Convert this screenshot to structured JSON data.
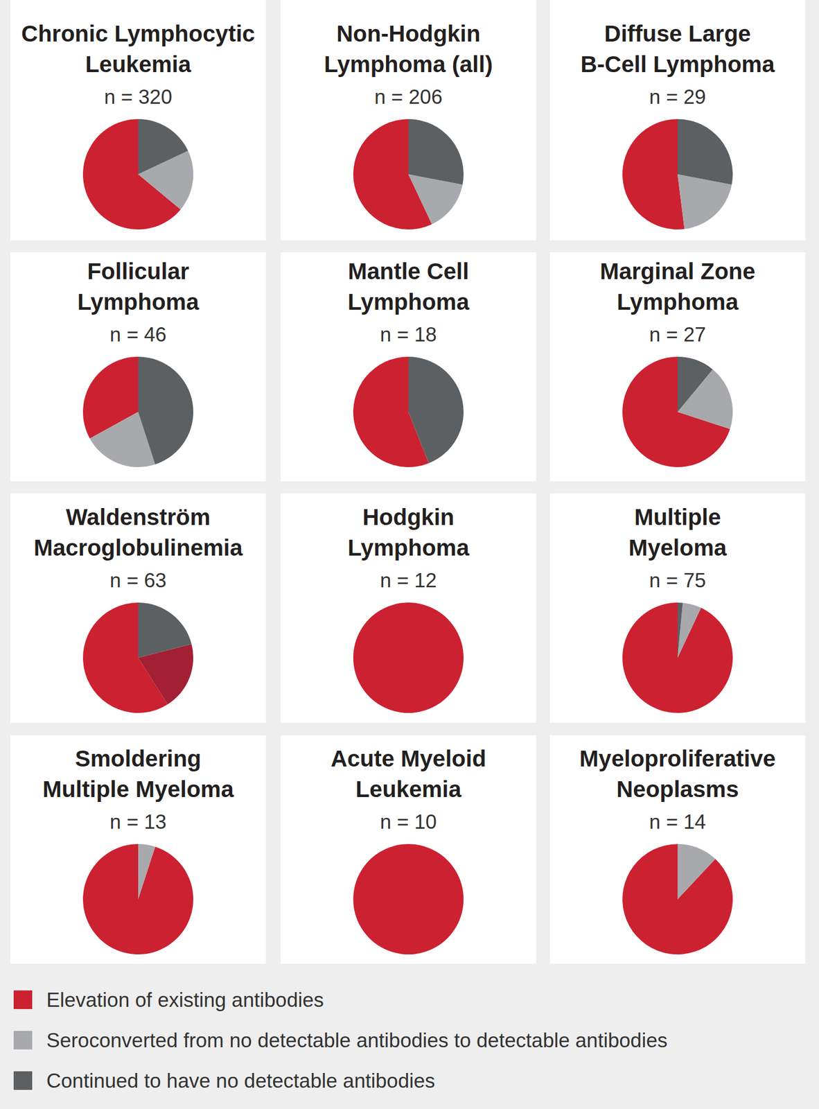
{
  "chart_data": [
    {
      "type": "pie",
      "title": "Chronic Lymphocytic Leukemia",
      "subtitle": "n = 320",
      "categories": [
        "Elevation of existing antibodies",
        "Seroconverted from no detectable antibodies to detectable antibodies",
        "Continued to have no detectable antibodies"
      ],
      "values": [
        64,
        18,
        18
      ],
      "colors": [
        "#cc2131",
        "#a7a9ac",
        "#5d6062"
      ],
      "legend": "bottom"
    },
    {
      "type": "pie",
      "title": "Non-Hodgkin Lymphoma (all)",
      "subtitle": "n = 206",
      "categories": [
        "Elevation of existing antibodies",
        "Seroconverted from no detectable antibodies to detectable antibodies",
        "Continued to have no detectable antibodies"
      ],
      "values": [
        57,
        15,
        28
      ],
      "colors": [
        "#cc2131",
        "#a7a9ac",
        "#5d6062"
      ],
      "legend": "bottom"
    },
    {
      "type": "pie",
      "title": "Diffuse Large B-Cell Lymphoma",
      "subtitle": "n = 29",
      "categories": [
        "Elevation of existing antibodies",
        "Seroconverted from no detectable antibodies to detectable antibodies",
        "Continued to have no detectable antibodies"
      ],
      "values": [
        52,
        20,
        28
      ],
      "colors": [
        "#cc2131",
        "#a7a9ac",
        "#5d6062"
      ],
      "legend": "bottom"
    },
    {
      "type": "pie",
      "title": "Follicular Lymphoma",
      "subtitle": "n = 46",
      "categories": [
        "Elevation of existing antibodies",
        "Seroconverted from no detectable antibodies to detectable antibodies",
        "Continued to have no detectable antibodies"
      ],
      "values": [
        33,
        22,
        45
      ],
      "colors": [
        "#cc2131",
        "#a7a9ac",
        "#5d6062"
      ],
      "legend": "bottom"
    },
    {
      "type": "pie",
      "title": "Mantle Cell Lymphoma",
      "subtitle": "n = 18",
      "categories": [
        "Elevation of existing antibodies",
        "Seroconverted from no detectable antibodies to detectable antibodies",
        "Continued to have no detectable antibodies"
      ],
      "values": [
        56,
        0,
        44
      ],
      "colors": [
        "#cc2131",
        "#a7a9ac",
        "#5d6062"
      ],
      "legend": "bottom"
    },
    {
      "type": "pie",
      "title": "Marginal Zone Lymphoma",
      "subtitle": "n = 27",
      "categories": [
        "Elevation of existing antibodies",
        "Seroconverted from no detectable antibodies to detectable antibodies",
        "Continued to have no detectable antibodies"
      ],
      "values": [
        70,
        19,
        11
      ],
      "colors": [
        "#cc2131",
        "#a7a9ac",
        "#5d6062"
      ],
      "legend": "bottom"
    },
    {
      "type": "pie",
      "title": "Waldenström Macroglobulinemia",
      "subtitle": "n = 63",
      "categories": [
        "Elevation of existing antibodies",
        "Seroconverted from no detectable antibodies to detectable antibodies",
        "Continued to have no detectable antibodies"
      ],
      "values": [
        59,
        20,
        21
      ],
      "colors": [
        "#cc2131",
        "#a31f34",
        "#5d6062"
      ],
      "legend": "bottom"
    },
    {
      "type": "pie",
      "title": "Hodgkin Lymphoma",
      "subtitle": "n = 12",
      "categories": [
        "Elevation of existing antibodies",
        "Seroconverted from no detectable antibodies to detectable antibodies",
        "Continued to have no detectable antibodies"
      ],
      "values": [
        100,
        0,
        0
      ],
      "colors": [
        "#cc2131",
        "#a7a9ac",
        "#5d6062"
      ],
      "legend": "bottom"
    },
    {
      "type": "pie",
      "title": "Multiple Myeloma",
      "subtitle": "n = 75",
      "categories": [
        "Elevation of existing antibodies",
        "Seroconverted from no detectable antibodies to detectable antibodies",
        "Continued to have no detectable antibodies"
      ],
      "values": [
        93,
        5.5,
        1.5
      ],
      "colors": [
        "#cc2131",
        "#a7a9ac",
        "#5d6062"
      ],
      "legend": "bottom"
    },
    {
      "type": "pie",
      "title": "Smoldering Multiple Myeloma",
      "subtitle": "n = 13",
      "categories": [
        "Elevation of existing antibodies",
        "Seroconverted from no detectable antibodies to detectable antibodies",
        "Continued to have no detectable antibodies"
      ],
      "values": [
        95,
        5,
        0
      ],
      "colors": [
        "#cc2131",
        "#a7a9ac",
        "#5d6062"
      ],
      "legend": "bottom"
    },
    {
      "type": "pie",
      "title": "Acute Myeloid Leukemia",
      "subtitle": "n = 10",
      "categories": [
        "Elevation of existing antibodies",
        "Seroconverted from no detectable antibodies to detectable antibodies",
        "Continued to have no detectable antibodies"
      ],
      "values": [
        100,
        0,
        0
      ],
      "colors": [
        "#cc2131",
        "#a7a9ac",
        "#5d6062"
      ],
      "legend": "bottom"
    },
    {
      "type": "pie",
      "title": "Myeloproliferative Neoplasms",
      "subtitle": "n = 14",
      "categories": [
        "Elevation of existing antibodies",
        "Seroconverted from no detectable antibodies to detectable antibodies",
        "Continued to have no detectable antibodies"
      ],
      "values": [
        88,
        12,
        0
      ],
      "colors": [
        "#cc2131",
        "#a7a9ac",
        "#5d6062"
      ],
      "legend": "bottom"
    }
  ]
}
